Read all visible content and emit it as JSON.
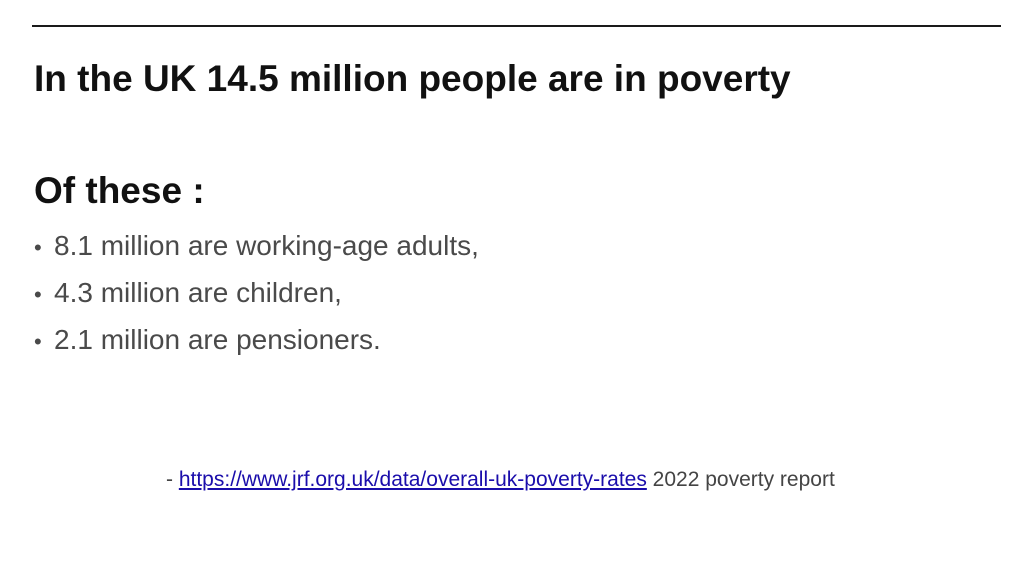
{
  "slide": {
    "headline": "In the UK 14.5 million people are in poverty",
    "subheading": "Of these :",
    "bullet_marker": "•",
    "bullets": [
      "8.1 million are working-age adults,",
      "4.3 million are children,",
      "2.1 million are pensioners."
    ],
    "source": {
      "prefix": "- ",
      "link_text": "https://www.jrf.org.uk/data/overall-uk-poverty-rates",
      "suffix": " 2022 poverty report"
    }
  },
  "colors": {
    "heading": "#111111",
    "body": "#4a4a4a",
    "link": "#1a0dab"
  }
}
